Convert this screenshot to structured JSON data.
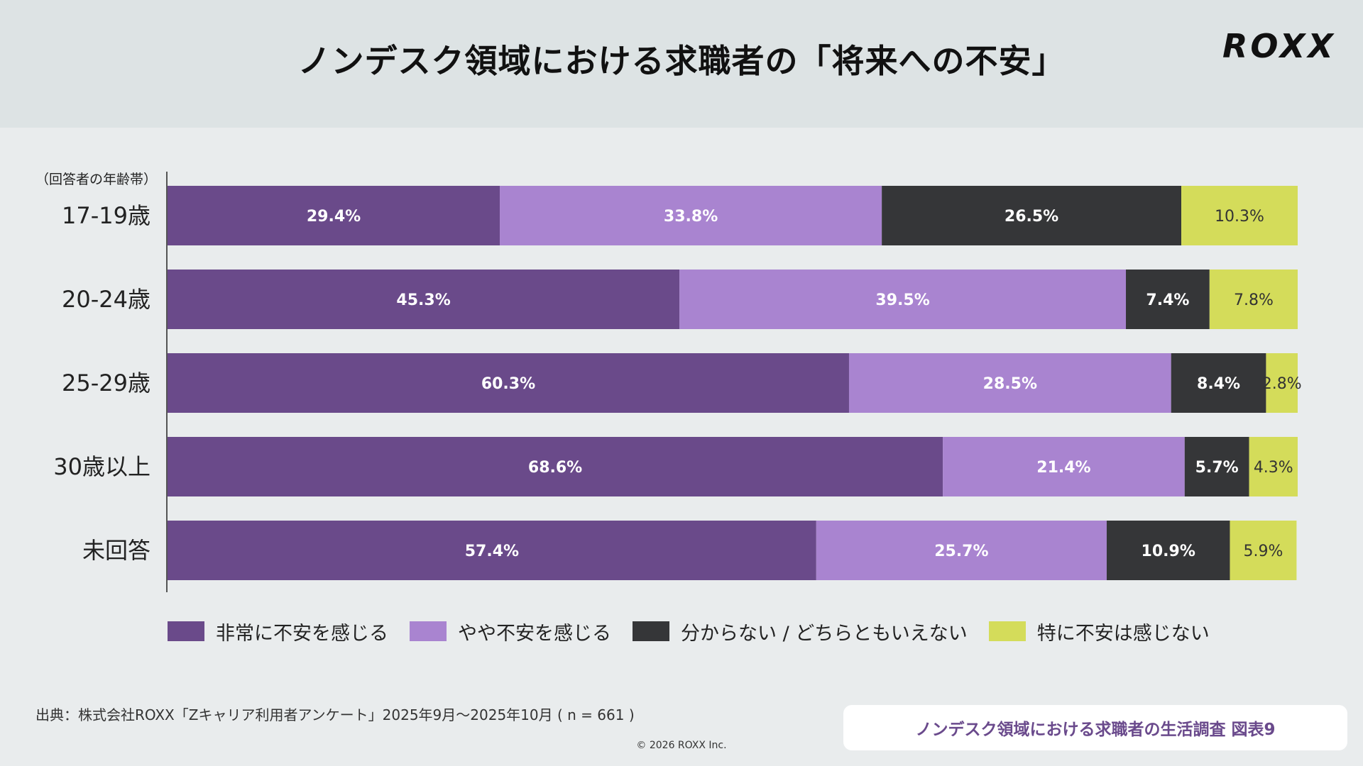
{
  "header": {
    "title": "ノンデスク領域における求職者の「将来への不安」",
    "logo": "ROXX"
  },
  "chart_data": {
    "type": "bar",
    "orientation": "horizontal",
    "stacked": true,
    "title": "ノンデスク領域における求職者の「将来への不安」",
    "ylabel": "（回答者の年齢帯）",
    "xlim": [
      0,
      100
    ],
    "categories": [
      "17-19歳",
      "20-24歳",
      "25-29歳",
      "30歳以上",
      "未回答"
    ],
    "series": [
      {
        "name": "非常に不安を感じる",
        "color": "#6a4a8a",
        "label_color": "#ffffff",
        "values": [
          29.4,
          45.3,
          60.3,
          68.6,
          57.4
        ]
      },
      {
        "name": "やや不安を感じる",
        "color": "#a984d0",
        "label_color": "#ffffff",
        "values": [
          33.8,
          39.5,
          28.5,
          21.4,
          25.7
        ]
      },
      {
        "name": "分からない / どちらともいえない",
        "color": "#353638",
        "label_color": "#ffffff",
        "values": [
          26.5,
          7.4,
          8.4,
          5.7,
          10.9
        ]
      },
      {
        "name": "特に不安は感じない",
        "color": "#d4dc5a",
        "label_color": "#333333",
        "values": [
          10.3,
          7.8,
          2.8,
          4.3,
          5.9
        ]
      }
    ],
    "labels": [
      [
        "29.4%",
        "33.8%",
        "26.5%",
        "10.3%"
      ],
      [
        "45.3%",
        "39.5%",
        "7.4%",
        "7.8%"
      ],
      [
        "60.3%",
        "28.5%",
        "8.4%",
        "2.8%"
      ],
      [
        "68.6%",
        "21.4%",
        "5.7%",
        "4.3%"
      ],
      [
        "57.4%",
        "25.7%",
        "10.9%",
        "5.9%"
      ]
    ],
    "legend_position": "bottom"
  },
  "footer": {
    "source": "出典：株式会社ROXX「Zキャリア利用者アンケート」2025年9月〜2025年10月 ( n = 661 )",
    "copyright": "© 2026 ROXX Inc.",
    "figure_label": "ノンデスク領域における求職者の生活調査 図表9"
  }
}
